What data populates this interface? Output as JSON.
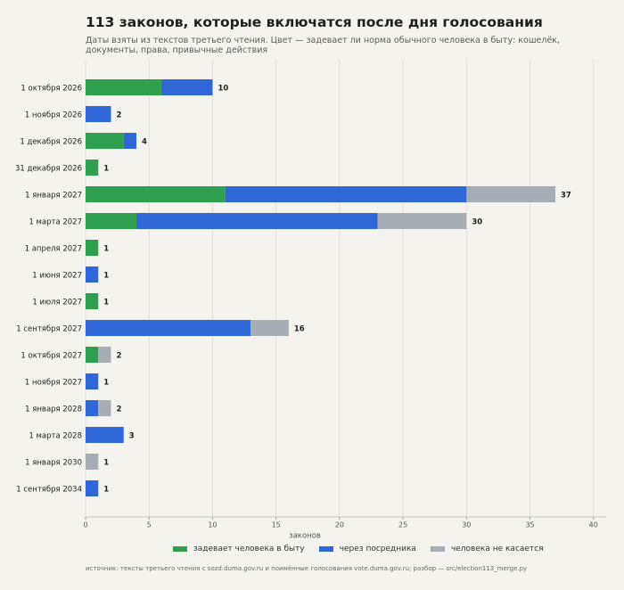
{
  "title": "113 законов, которые включатся после дня голосования",
  "subtitle": "Даты взяты из текстов третьего чтения. Цвет — задевает ли норма обычного человека в быту: кошелёк, документы, права, привычные действия",
  "source": "источник: тексты третьего чтения с sozd.duma.gov.ru и поимённые голосования vote.duma.gov.ru; разбор — src/election113_merge.py",
  "colors": {
    "direct": "#2e9e4f",
    "intermediary": "#2f67d8",
    "none": "#a7adb4",
    "grid": "#dedbd3",
    "background": "#f5f3ee"
  },
  "chart_data": {
    "type": "bar",
    "orientation": "horizontal",
    "stacked": true,
    "xlabel": "законов",
    "ylabel": "",
    "xlim": [
      0,
      41
    ],
    "xticks": [
      0,
      5,
      10,
      15,
      20,
      25,
      30,
      35,
      40
    ],
    "grid": true,
    "legend_position": "bottom",
    "categories": [
      "1 октября 2026",
      "1 ноября 2026",
      "1 декабря 2026",
      "31 декабря 2026",
      "1 января 2027",
      "1 марта 2027",
      "1 апреля 2027",
      "1 июня 2027",
      "1 июля 2027",
      "1 сентября 2027",
      "1 октября 2027",
      "1 ноября 2027",
      "1 января 2028",
      "1 марта 2028",
      "1 января 2030",
      "1 сентября 2034"
    ],
    "series": [
      {
        "name": "задевает человека в быту",
        "color_key": "direct",
        "values": [
          6,
          0,
          3,
          1,
          11,
          4,
          1,
          0,
          1,
          0,
          1,
          0,
          0,
          0,
          0,
          0
        ]
      },
      {
        "name": "через посредника",
        "color_key": "intermediary",
        "values": [
          4,
          2,
          1,
          0,
          19,
          19,
          0,
          1,
          0,
          13,
          0,
          1,
          1,
          3,
          0,
          1
        ]
      },
      {
        "name": "человека не касается",
        "color_key": "none",
        "values": [
          0,
          0,
          0,
          0,
          7,
          7,
          0,
          0,
          0,
          3,
          1,
          0,
          1,
          0,
          1,
          0
        ]
      }
    ],
    "totals": [
      10,
      2,
      4,
      1,
      37,
      30,
      1,
      1,
      1,
      16,
      2,
      1,
      2,
      3,
      1,
      1
    ]
  }
}
